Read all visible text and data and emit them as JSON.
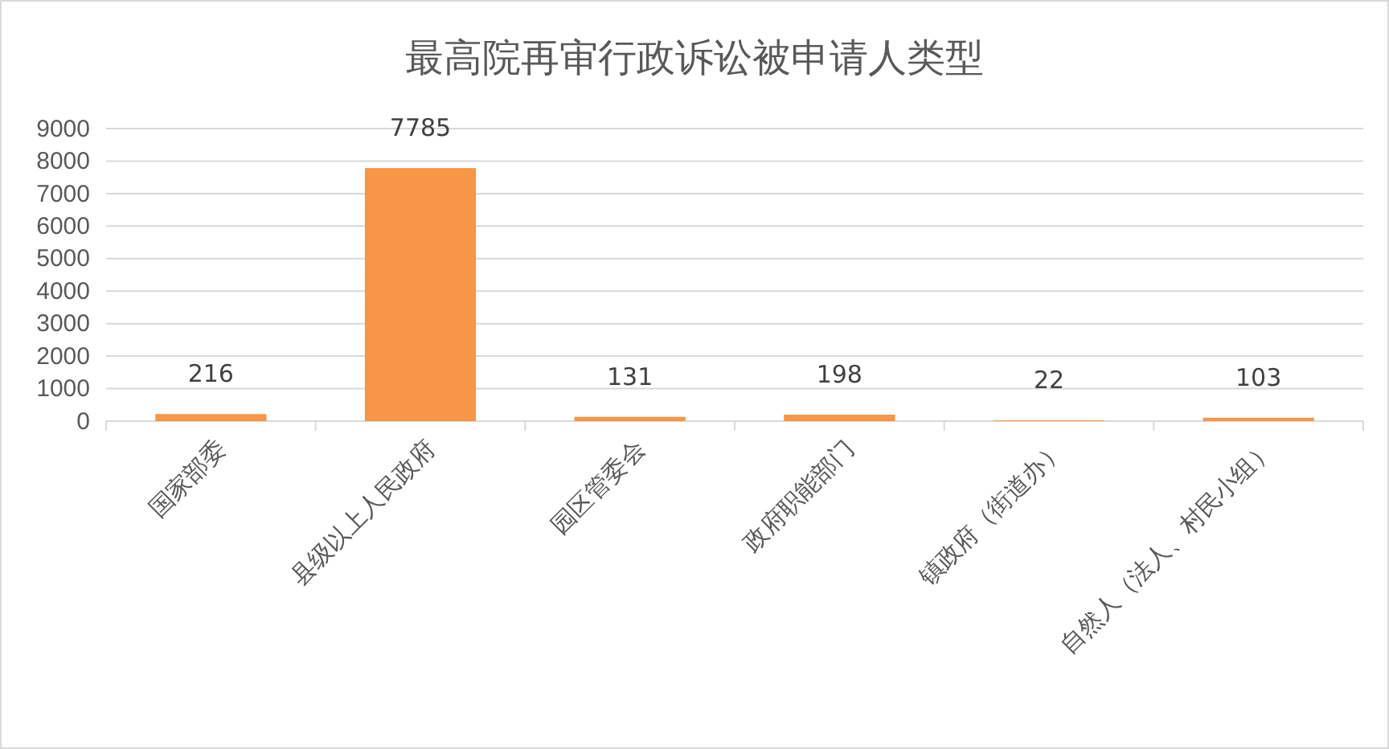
{
  "chart_data": {
    "type": "bar",
    "title": "最高院再审行政诉讼被申请人类型",
    "categories": [
      "国家部委",
      "县级以上人民政府",
      "园区管委会",
      "政府职能部门",
      "镇政府（街道办）",
      "自然人（法人、村民小组）"
    ],
    "values": [
      216,
      7785,
      131,
      198,
      22,
      103
    ],
    "color": "#f79646",
    "ylim": [
      0,
      9000
    ],
    "yticks": [
      0,
      1000,
      2000,
      3000,
      4000,
      5000,
      6000,
      7000,
      8000,
      9000
    ],
    "grid": "y",
    "data_labels": true
  }
}
